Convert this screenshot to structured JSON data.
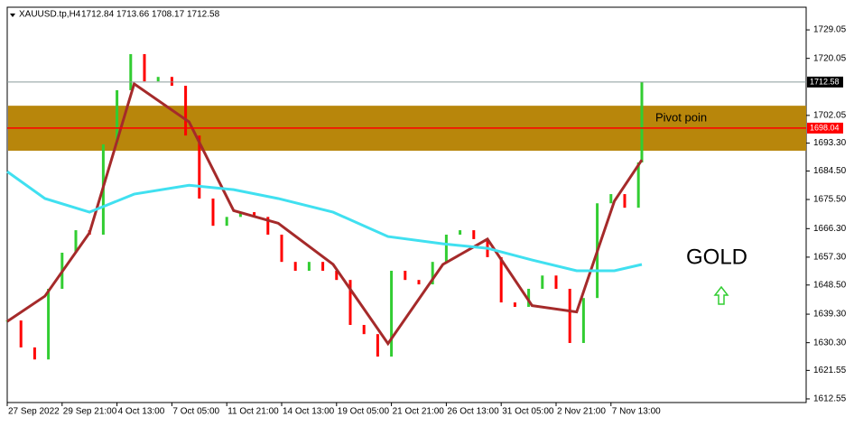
{
  "chart_data": {
    "type": "candlestick",
    "title": "XAUUSD.tp,H4",
    "ohlc": [
      1712.84,
      1713.66,
      1708.17,
      1712.58
    ],
    "up_color": "#32cd32",
    "down_color": "#ff0000",
    "xlim": [
      0,
      232.9
    ],
    "ylim": [
      1611.4,
      1736.2
    ],
    "xticks": [
      {
        "value": 0,
        "label": "27 Sep 2022"
      },
      {
        "value": 16,
        "label": "29 Sep 21:00"
      },
      {
        "value": 32,
        "label": "4 Oct 13:00"
      },
      {
        "value": 48,
        "label": "7 Oct 05:00"
      },
      {
        "value": 64,
        "label": "11 Oct 21:00"
      },
      {
        "value": 80,
        "label": "14 Oct 13:00"
      },
      {
        "value": 96,
        "label": "19 Oct 05:00"
      },
      {
        "value": 112,
        "label": "21 Oct 21:00"
      },
      {
        "value": 128,
        "label": "26 Oct 13:00"
      },
      {
        "value": 144,
        "label": "31 Oct 05:00"
      },
      {
        "value": 160,
        "label": "2 Nov 21:00"
      },
      {
        "value": 176,
        "label": "7 Nov 13:00"
      }
    ],
    "yticks": [
      1729.05,
      1720.05,
      1702.05,
      {
        "value": 1693.3,
        "label": "1693.30"
      },
      {
        "value": 1684.5,
        "label": "1684.50"
      },
      {
        "value": 1675.5,
        "label": "1675.50"
      },
      {
        "value": 1666.3,
        "label": "1666.30"
      },
      {
        "value": 1657.3,
        "label": "1657.30"
      },
      {
        "value": 1648.5,
        "label": "1648.50"
      },
      {
        "value": 1639.3,
        "label": "1639.30"
      },
      {
        "value": 1630.3,
        "label": "1630.30"
      },
      1621.55,
      1612.55
    ],
    "series": [
      {
        "kind": "price",
        "x": [
          0,
          4,
          8,
          12,
          16,
          20,
          24,
          28,
          32,
          36,
          40,
          44,
          48,
          52,
          56,
          60,
          64,
          68,
          72,
          76,
          80,
          84,
          88,
          92,
          96,
          100,
          104,
          108,
          112,
          116,
          120,
          124,
          128,
          132,
          136,
          140,
          144,
          148,
          152,
          156,
          160,
          164,
          168,
          172,
          176,
          180,
          184,
          185
        ],
        "values": [
          1637.3,
          1628.8,
          1625,
          1647.3,
          1658.7,
          1665.8,
          1664.4,
          1692.9,
          1710,
          1721.4,
          1712.8,
          1714.2,
          1711.4,
          1695.7,
          1675.8,
          1667.2,
          1670,
          1671.5,
          1670,
          1664.4,
          1655.8,
          1653,
          1655.8,
          1653,
          1650.1,
          1635.9,
          1633,
          1625.9,
          1653,
          1650.1,
          1648.7,
          1655.8,
          1664.4,
          1665.8,
          1663,
          1657.3,
          1643,
          1641.6,
          1647.3,
          1651.5,
          1647.3,
          1630.2,
          1644.4,
          1674.3,
          1677.2,
          1672.9,
          1687.2,
          1712.58
        ]
      },
      {
        "kind": "line",
        "color": "#a52a2a",
        "x": [
          0,
          11,
          24,
          37,
          53,
          66,
          79,
          95,
          111,
          127,
          140,
          153,
          166,
          177,
          185
        ],
        "values": [
          1637,
          1645,
          1665,
          1712,
          1700,
          1672,
          1668,
          1655,
          1630,
          1655,
          1663,
          1642,
          1640,
          1675,
          1688
        ]
      },
      {
        "kind": "line",
        "color": "#40e0f0",
        "x": [
          0,
          11,
          24,
          37,
          53,
          66,
          79,
          95,
          111,
          127,
          140,
          153,
          166,
          177,
          185
        ],
        "values": [
          1684.3,
          1675.8,
          1671.5,
          1677.2,
          1680,
          1678.6,
          1675.8,
          1671.5,
          1663.8,
          1661.5,
          1660.1,
          1656.4,
          1653,
          1653,
          1655
        ]
      }
    ],
    "zone": {
      "from": 1690.9,
      "to": 1705.1,
      "color": "#b8860b"
    },
    "levels": [
      {
        "value": 1698.04,
        "color": "#ff0000"
      },
      {
        "value": 1712.58,
        "color": "#000000"
      }
    ],
    "annotations": [
      "Pivot poin",
      "GOLD"
    ]
  }
}
